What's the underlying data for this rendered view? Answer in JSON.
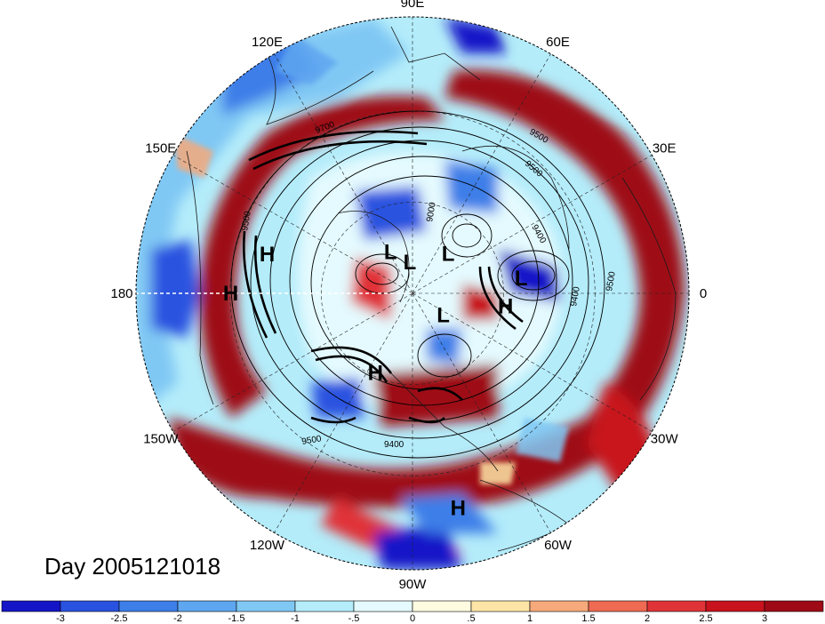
{
  "day_label": "Day 2005121018",
  "longitude_labels": [
    "90E",
    "60E",
    "30E",
    "0",
    "30W",
    "60W",
    "90W",
    "120W",
    "150W",
    "180",
    "150E",
    "120E"
  ],
  "systems": [
    {
      "label": "H",
      "lon": 165,
      "lat": 42
    },
    {
      "label": "H",
      "lon": 180,
      "lat": 32
    },
    {
      "label": "L",
      "lon": 118,
      "lat": 75
    },
    {
      "label": "L",
      "lon": 95,
      "lat": 80
    },
    {
      "label": "L",
      "lon": 48,
      "lat": 73
    },
    {
      "label": "L",
      "lon": 8,
      "lat": 55
    },
    {
      "label": "H",
      "lon": -8,
      "lat": 60
    },
    {
      "label": "L",
      "lon": -35,
      "lat": 78
    },
    {
      "label": "H",
      "lon": -115,
      "lat": 62
    },
    {
      "label": "H",
      "lon": -78,
      "lat": 20
    }
  ],
  "contour_labels": [
    "9700",
    "9500",
    "9500",
    "9500",
    "9000",
    "9400",
    "9500",
    "9400",
    "9500",
    "9400"
  ],
  "colorbar": {
    "tick_labels": [
      "-3",
      "-2.5",
      "-2",
      "-1.5",
      "-1",
      "-.5",
      "0",
      ".5",
      "1",
      "1.5",
      "2",
      "2.5",
      "3"
    ],
    "colors": [
      "#1515c8",
      "#2a52e0",
      "#3d7ee8",
      "#5ea6f0",
      "#80c8f4",
      "#b4ecfa",
      "#e4fafe",
      "#fefbe0",
      "#fde5a6",
      "#f6a97a",
      "#ee6a52",
      "#e03338",
      "#c8121d",
      "#9e0a16"
    ]
  }
}
